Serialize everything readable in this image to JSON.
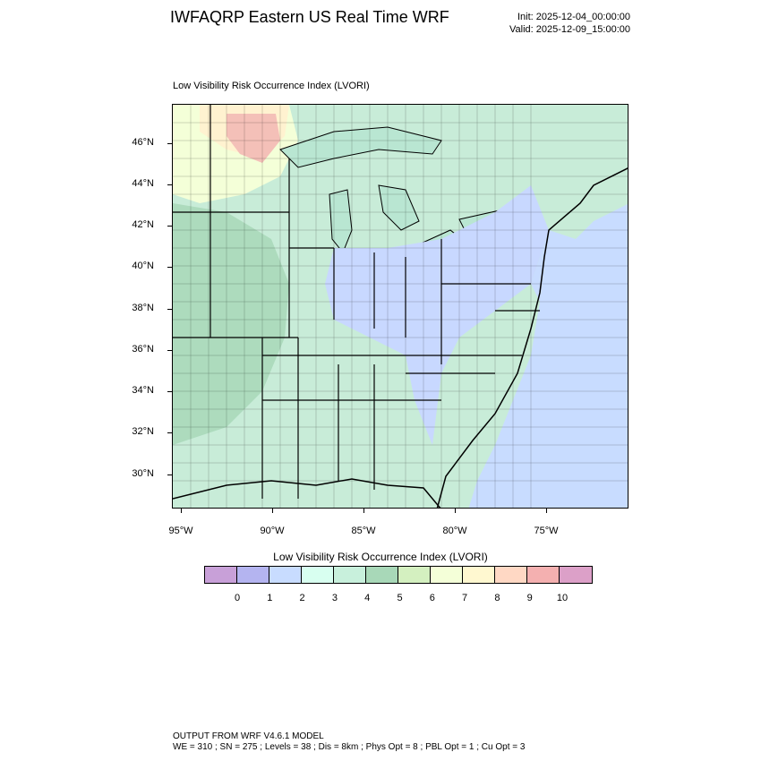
{
  "title": "IWFAQRP Eastern US Real Time WRF",
  "init_text": "Init: 2025-12-04_00:00:00",
  "valid_text": "Valid: 2025-12-09_15:00:00",
  "map_title": "Low Visibility Risk Occurrence Index   (LVORI)",
  "lat_labels": [
    "46°N",
    "44°N",
    "42°N",
    "40°N",
    "38°N",
    "36°N",
    "34°N",
    "32°N",
    "30°N"
  ],
  "lon_labels": [
    "95°W",
    "90°W",
    "85°W",
    "80°W",
    "75°W"
  ],
  "colorbar": {
    "title": "Low Visibility Risk Occurrence Index  (LVORI)",
    "colors": [
      "#c8a0d8",
      "#b4b4f0",
      "#c8dcff",
      "#d8fff0",
      "#c8f0dc",
      "#a8d8b8",
      "#d4f0c0",
      "#f4ffd8",
      "#fff8d0",
      "#ffd8c4",
      "#f4b0b0",
      "#dca0c8"
    ],
    "labels": [
      "0",
      "1",
      "2",
      "3",
      "4",
      "5",
      "6",
      "7",
      "8",
      "9",
      "10"
    ]
  },
  "footer": {
    "line1": "OUTPUT FROM WRF V4.6.1 MODEL",
    "line2": "WE = 310 ; SN = 275 ; Levels = 38 ; Dis = 8km ; Phys Opt = 8 ; PBL Opt = 1 ; Cu Opt = 3"
  }
}
